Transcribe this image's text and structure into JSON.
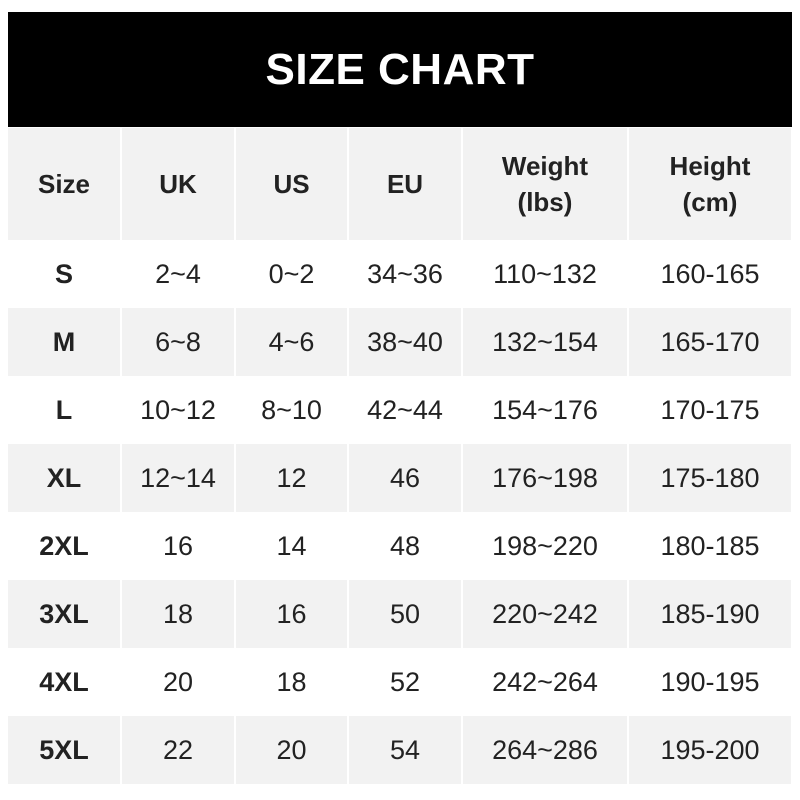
{
  "title": "SIZE CHART",
  "headers": [
    {
      "l1": "Size",
      "l2": ""
    },
    {
      "l1": "UK",
      "l2": ""
    },
    {
      "l1": "US",
      "l2": ""
    },
    {
      "l1": "EU",
      "l2": ""
    },
    {
      "l1": "Weight",
      "l2": "(lbs)"
    },
    {
      "l1": "Height",
      "l2": "(cm)"
    }
  ],
  "rows": [
    [
      "S",
      "2~4",
      "0~2",
      "34~36",
      "110~132",
      "160-165"
    ],
    [
      "M",
      "6~8",
      "4~6",
      "38~40",
      "132~154",
      "165-170"
    ],
    [
      "L",
      "10~12",
      "8~10",
      "42~44",
      "154~176",
      "170-175"
    ],
    [
      "XL",
      "12~14",
      "12",
      "46",
      "176~198",
      "175-180"
    ],
    [
      "2XL",
      "16",
      "14",
      "48",
      "198~220",
      "180-185"
    ],
    [
      "3XL",
      "18",
      "16",
      "50",
      "220~242",
      "185-190"
    ],
    [
      "4XL",
      "20",
      "18",
      "52",
      "242~264",
      "190-195"
    ],
    [
      "5XL",
      "22",
      "20",
      "54",
      "264~286",
      "195-200"
    ]
  ],
  "colors": {
    "title_bg": "#000000",
    "stripe": "#f2f2f2",
    "text": "#222222"
  }
}
